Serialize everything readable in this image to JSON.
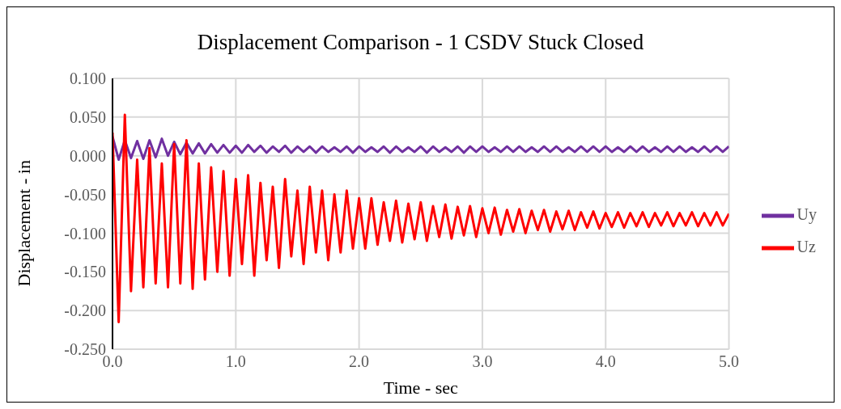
{
  "chart_data": {
    "type": "line",
    "title": "Displacement Comparison  - 1 CSDV Stuck Closed",
    "xlabel": "Time - sec",
    "ylabel": "Displacement - in",
    "x": [
      0,
      0.05,
      0.1,
      0.15,
      0.2,
      0.25,
      0.3,
      0.35,
      0.4,
      0.45,
      0.5,
      0.55,
      0.6,
      0.65,
      0.7,
      0.75,
      0.8,
      0.85,
      0.9,
      0.95,
      1.0,
      1.05,
      1.1,
      1.15,
      1.2,
      1.25,
      1.3,
      1.35,
      1.4,
      1.45,
      1.5,
      1.55,
      1.6,
      1.65,
      1.7,
      1.75,
      1.8,
      1.85,
      1.9,
      1.95,
      2.0,
      2.05,
      2.1,
      2.15,
      2.2,
      2.25,
      2.3,
      2.35,
      2.4,
      2.45,
      2.5,
      2.55,
      2.6,
      2.65,
      2.7,
      2.75,
      2.8,
      2.85,
      2.9,
      2.95,
      3.0,
      3.05,
      3.1,
      3.15,
      3.2,
      3.25,
      3.3,
      3.35,
      3.4,
      3.45,
      3.5,
      3.55,
      3.6,
      3.65,
      3.7,
      3.75,
      3.8,
      3.85,
      3.9,
      3.95,
      4.0,
      4.05,
      4.1,
      4.15,
      4.2,
      4.25,
      4.3,
      4.35,
      4.4,
      4.45,
      4.5,
      4.55,
      4.6,
      4.65,
      4.7,
      4.75,
      4.8,
      4.85,
      4.9,
      4.95,
      5.0
    ],
    "series": [
      {
        "name": "Uy",
        "color": "#7030a0",
        "values": [
          0.025,
          -0.005,
          0.02,
          -0.003,
          0.019,
          -0.004,
          0.02,
          -0.002,
          0.022,
          0.0,
          0.018,
          0.002,
          0.017,
          0.003,
          0.016,
          0.003,
          0.015,
          0.004,
          0.014,
          0.004,
          0.013,
          0.004,
          0.014,
          0.005,
          0.013,
          0.004,
          0.012,
          0.005,
          0.013,
          0.004,
          0.012,
          0.005,
          0.012,
          0.004,
          0.012,
          0.005,
          0.011,
          0.005,
          0.012,
          0.004,
          0.012,
          0.005,
          0.011,
          0.005,
          0.012,
          0.004,
          0.012,
          0.005,
          0.011,
          0.005,
          0.012,
          0.004,
          0.012,
          0.005,
          0.011,
          0.005,
          0.012,
          0.004,
          0.012,
          0.005,
          0.012,
          0.005,
          0.011,
          0.005,
          0.012,
          0.005,
          0.012,
          0.005,
          0.011,
          0.005,
          0.012,
          0.005,
          0.012,
          0.005,
          0.011,
          0.005,
          0.012,
          0.005,
          0.012,
          0.005,
          0.012,
          0.005,
          0.011,
          0.005,
          0.012,
          0.005,
          0.012,
          0.005,
          0.011,
          0.005,
          0.012,
          0.005,
          0.012,
          0.005,
          0.011,
          0.005,
          0.012,
          0.005,
          0.012,
          0.005,
          0.012
        ]
      },
      {
        "name": "Uz",
        "color": "#ff0000",
        "values": [
          0.03,
          -0.215,
          0.053,
          -0.175,
          -0.005,
          -0.17,
          0.01,
          -0.165,
          -0.01,
          -0.17,
          0.015,
          -0.165,
          0.02,
          -0.172,
          -0.01,
          -0.16,
          -0.015,
          -0.15,
          -0.02,
          -0.155,
          -0.03,
          -0.14,
          -0.025,
          -0.155,
          -0.035,
          -0.135,
          -0.04,
          -0.145,
          -0.03,
          -0.13,
          -0.045,
          -0.14,
          -0.04,
          -0.125,
          -0.045,
          -0.135,
          -0.05,
          -0.125,
          -0.045,
          -0.12,
          -0.055,
          -0.12,
          -0.055,
          -0.115,
          -0.06,
          -0.11,
          -0.058,
          -0.112,
          -0.062,
          -0.108,
          -0.06,
          -0.11,
          -0.065,
          -0.105,
          -0.063,
          -0.107,
          -0.066,
          -0.103,
          -0.065,
          -0.105,
          -0.068,
          -0.1,
          -0.067,
          -0.102,
          -0.07,
          -0.098,
          -0.069,
          -0.1,
          -0.071,
          -0.096,
          -0.07,
          -0.098,
          -0.072,
          -0.095,
          -0.071,
          -0.096,
          -0.073,
          -0.093,
          -0.072,
          -0.094,
          -0.074,
          -0.092,
          -0.073,
          -0.093,
          -0.074,
          -0.091,
          -0.073,
          -0.092,
          -0.074,
          -0.09,
          -0.073,
          -0.091,
          -0.074,
          -0.09,
          -0.073,
          -0.091,
          -0.074,
          -0.09,
          -0.073,
          -0.09,
          -0.075
        ]
      }
    ],
    "xlim": [
      0,
      5
    ],
    "xticks": [
      {
        "value": 0,
        "label": "0.0"
      },
      {
        "value": 1,
        "label": "1.0"
      },
      {
        "value": 2,
        "label": "2.0"
      },
      {
        "value": 3,
        "label": "3.0"
      },
      {
        "value": 4,
        "label": "4.0"
      },
      {
        "value": 5,
        "label": "5.0"
      }
    ],
    "ylim": [
      -0.25,
      0.1
    ],
    "yticks": [
      {
        "value": -0.25,
        "label": "-0.250"
      },
      {
        "value": -0.2,
        "label": "-0.200"
      },
      {
        "value": -0.15,
        "label": "-0.150"
      },
      {
        "value": -0.1,
        "label": "-0.100"
      },
      {
        "value": -0.05,
        "label": "-0.050"
      },
      {
        "value": 0,
        "label": "0.000"
      },
      {
        "value": 0.05,
        "label": "0.050"
      },
      {
        "value": 0.1,
        "label": "0.100"
      }
    ],
    "grid": true,
    "legend": "right",
    "marker": "none",
    "line_style": "solid"
  }
}
